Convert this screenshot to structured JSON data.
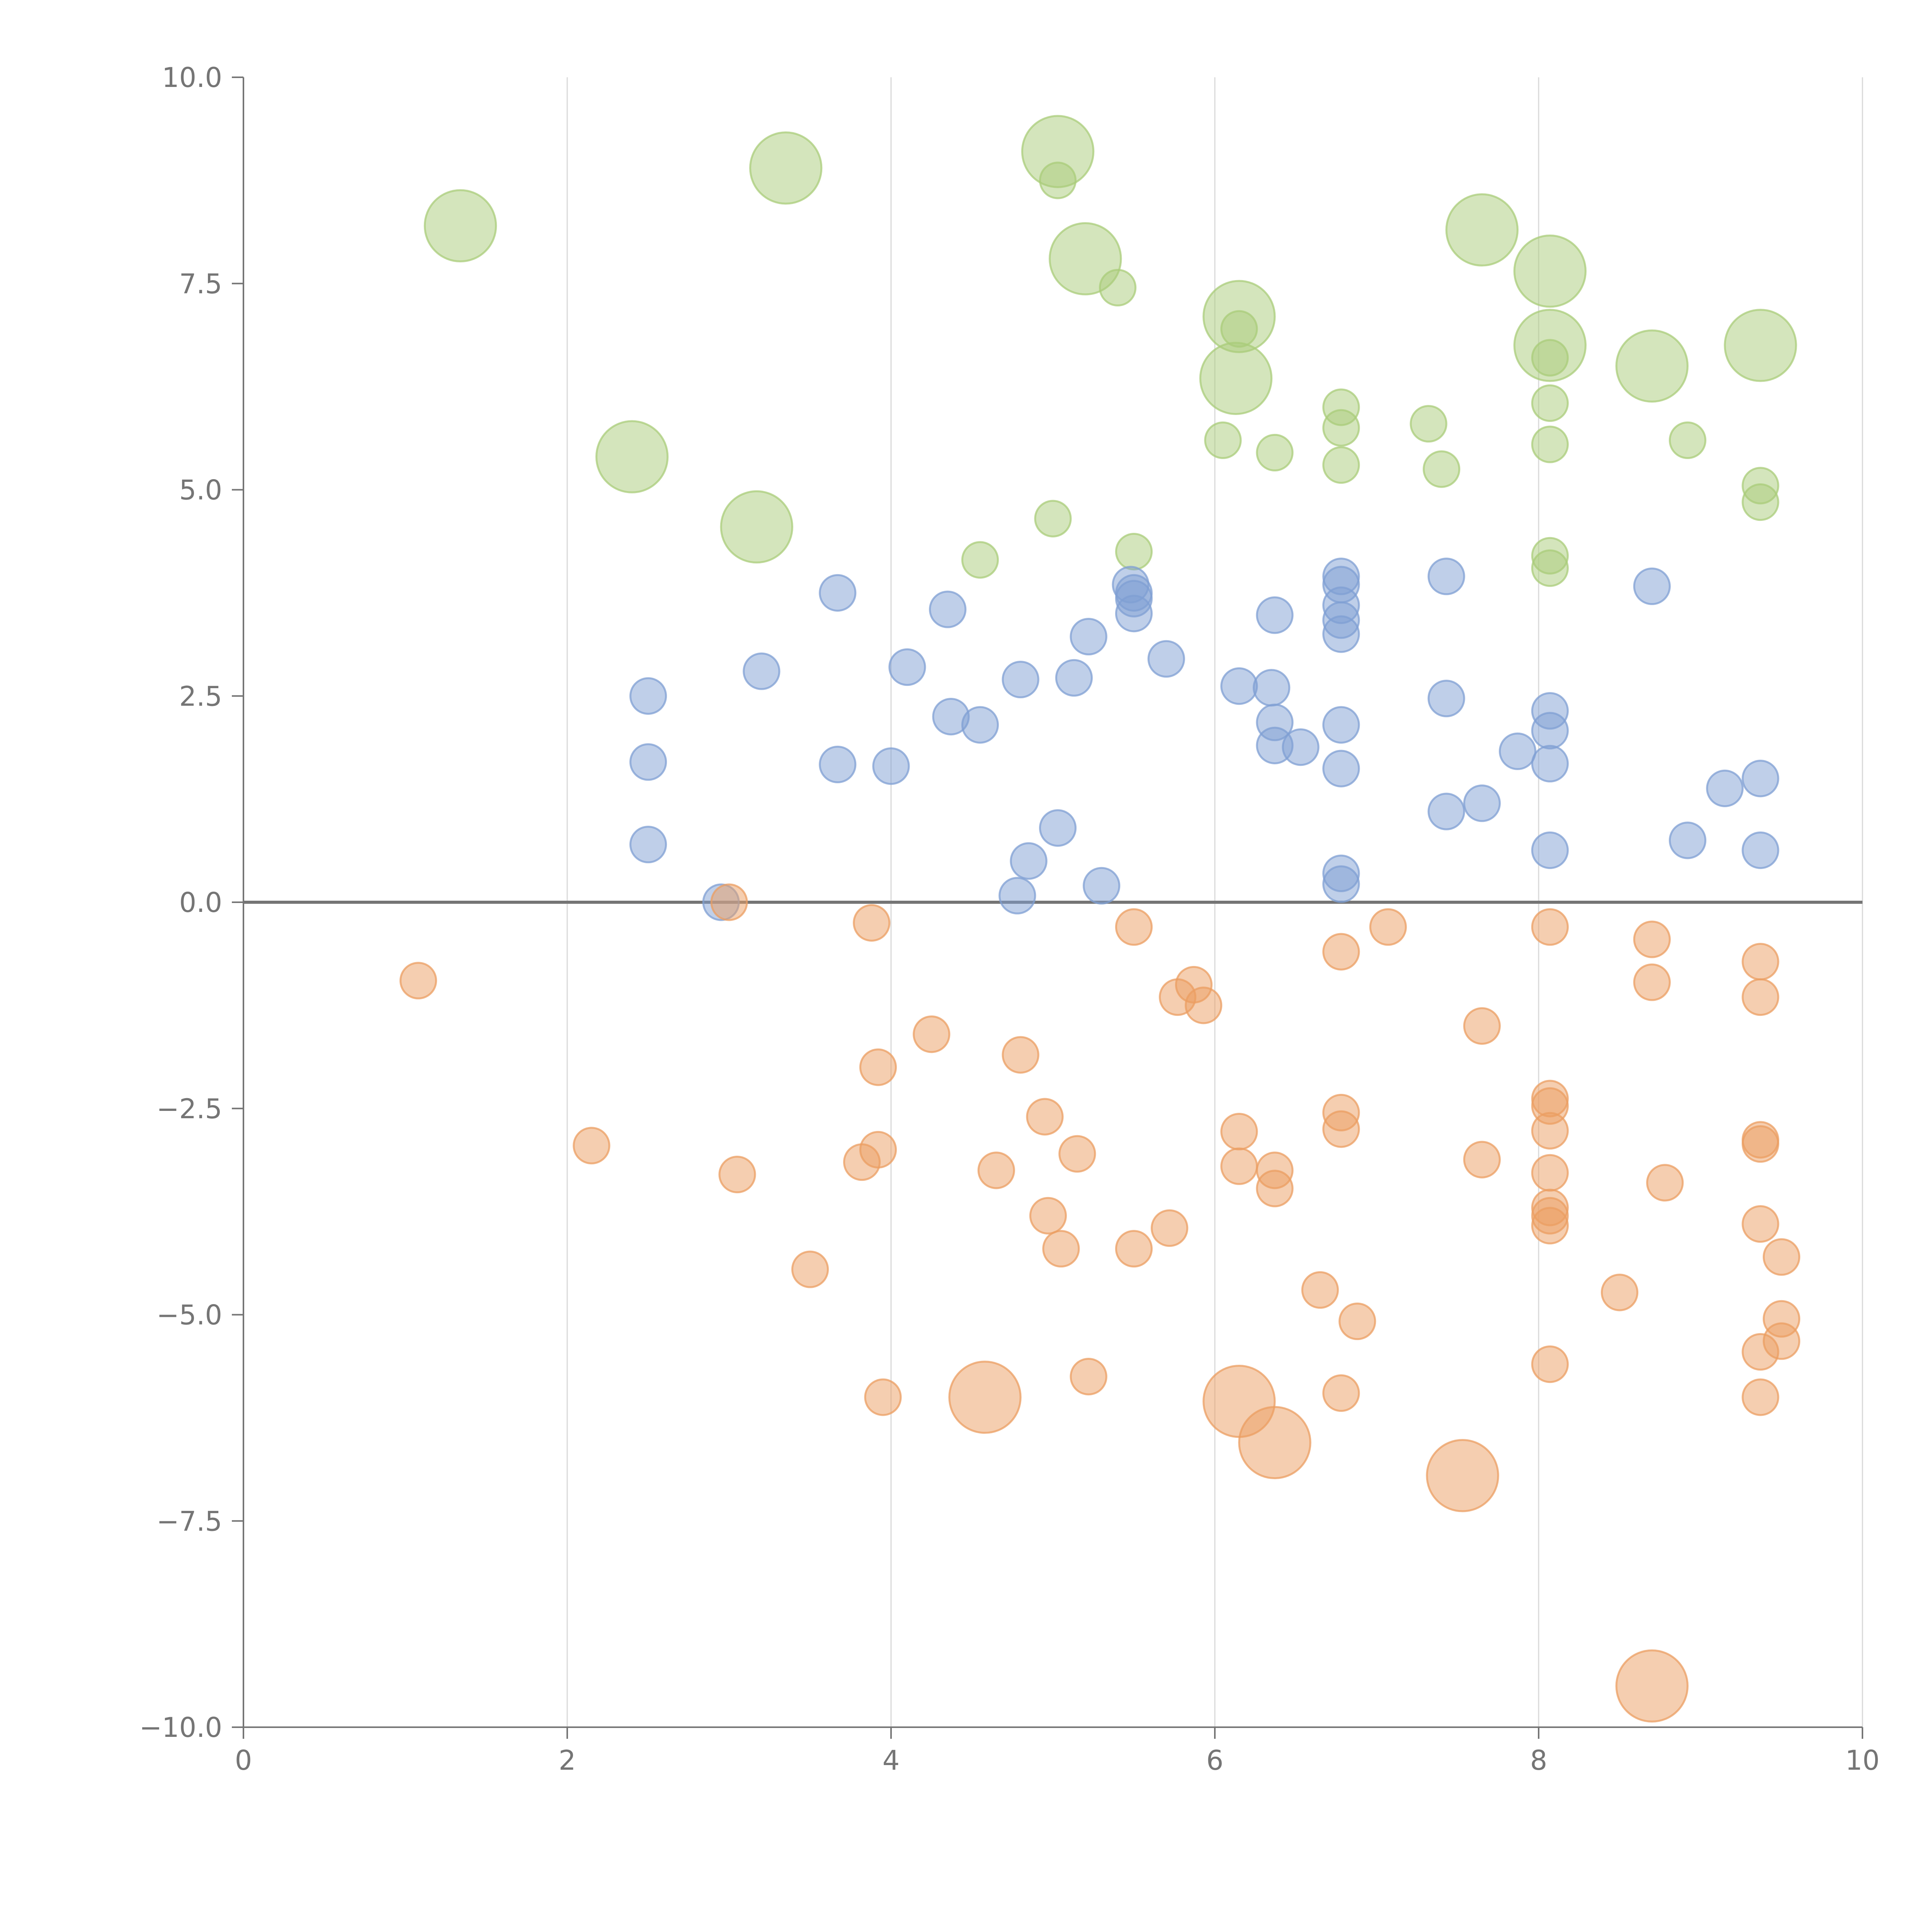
{
  "chart_data": {
    "type": "scatter",
    "title": "",
    "xlabel": "",
    "ylabel": "",
    "xlim": [
      0,
      10
    ],
    "ylim": [
      -10,
      10
    ],
    "x_ticks": [
      0,
      2,
      4,
      6,
      8,
      10
    ],
    "x_tick_labels": [
      "0",
      "2",
      "4",
      "6",
      "8",
      "10"
    ],
    "y_ticks": [
      -10,
      -7.5,
      -5,
      -2.5,
      0,
      2.5,
      5,
      7.5,
      10
    ],
    "y_tick_labels": [
      "−10.0",
      "−7.5",
      "−5.0",
      "−2.5",
      "0.0",
      "2.5",
      "5.0",
      "7.5",
      "10.0"
    ],
    "grid": {
      "x": true,
      "y": false
    },
    "zero_line": true,
    "legend": "none",
    "colors": {
      "green": "#a9cc7a",
      "blue": "#7f9fd3",
      "orange": "#eb9e61",
      "axis": "#757575",
      "grid": "#d9d9d9"
    },
    "series": [
      {
        "color": "#a9cc7a",
        "points": [
          {
            "x": 1.34,
            "y": 8.2,
            "r": 0.22
          },
          {
            "x": 3.35,
            "y": 8.9,
            "r": 0.22
          },
          {
            "x": 5.03,
            "y": 9.1,
            "r": 0.22
          },
          {
            "x": 5.03,
            "y": 8.75,
            "r": 0.11
          },
          {
            "x": 5.2,
            "y": 7.8,
            "r": 0.22
          },
          {
            "x": 5.4,
            "y": 7.45,
            "r": 0.11
          },
          {
            "x": 6.15,
            "y": 7.1,
            "r": 0.22
          },
          {
            "x": 6.15,
            "y": 6.95,
            "r": 0.11
          },
          {
            "x": 6.13,
            "y": 6.35,
            "r": 0.22
          },
          {
            "x": 7.65,
            "y": 8.15,
            "r": 0.22
          },
          {
            "x": 8.07,
            "y": 7.65,
            "r": 0.22
          },
          {
            "x": 8.07,
            "y": 6.75,
            "r": 0.22
          },
          {
            "x": 8.07,
            "y": 6.6,
            "r": 0.11
          },
          {
            "x": 8.07,
            "y": 6.05,
            "r": 0.11
          },
          {
            "x": 8.07,
            "y": 5.55,
            "r": 0.11
          },
          {
            "x": 8.7,
            "y": 6.5,
            "r": 0.22
          },
          {
            "x": 9.37,
            "y": 6.75,
            "r": 0.22
          },
          {
            "x": 8.92,
            "y": 5.6,
            "r": 0.11
          },
          {
            "x": 9.37,
            "y": 5.05,
            "r": 0.11
          },
          {
            "x": 9.37,
            "y": 4.85,
            "r": 0.11
          },
          {
            "x": 2.4,
            "y": 5.4,
            "r": 0.22
          },
          {
            "x": 3.17,
            "y": 4.55,
            "r": 0.22
          },
          {
            "x": 4.55,
            "y": 4.15,
            "r": 0.11
          },
          {
            "x": 5.0,
            "y": 4.65,
            "r": 0.11
          },
          {
            "x": 5.5,
            "y": 4.25,
            "r": 0.11
          },
          {
            "x": 6.05,
            "y": 5.6,
            "r": 0.11
          },
          {
            "x": 6.37,
            "y": 5.45,
            "r": 0.11
          },
          {
            "x": 6.78,
            "y": 6.0,
            "r": 0.11
          },
          {
            "x": 6.78,
            "y": 5.75,
            "r": 0.11
          },
          {
            "x": 6.78,
            "y": 5.3,
            "r": 0.11
          },
          {
            "x": 7.32,
            "y": 5.8,
            "r": 0.11
          },
          {
            "x": 7.4,
            "y": 5.25,
            "r": 0.11
          },
          {
            "x": 8.07,
            "y": 4.2,
            "r": 0.11
          },
          {
            "x": 8.07,
            "y": 4.05,
            "r": 0.11
          }
        ]
      },
      {
        "color": "#7f9fd3",
        "points": [
          {
            "x": 2.5,
            "y": 2.5,
            "r": 0.11
          },
          {
            "x": 2.5,
            "y": 1.7,
            "r": 0.11
          },
          {
            "x": 2.5,
            "y": 0.7,
            "r": 0.11
          },
          {
            "x": 2.95,
            "y": 0.0,
            "r": 0.11
          },
          {
            "x": 3.2,
            "y": 2.8,
            "r": 0.11
          },
          {
            "x": 3.67,
            "y": 3.75,
            "r": 0.11
          },
          {
            "x": 3.67,
            "y": 1.67,
            "r": 0.11
          },
          {
            "x": 4.0,
            "y": 1.65,
            "r": 0.11
          },
          {
            "x": 4.1,
            "y": 2.85,
            "r": 0.11
          },
          {
            "x": 4.35,
            "y": 3.55,
            "r": 0.11
          },
          {
            "x": 4.37,
            "y": 2.25,
            "r": 0.11
          },
          {
            "x": 4.55,
            "y": 2.15,
            "r": 0.11
          },
          {
            "x": 4.8,
            "y": 2.7,
            "r": 0.11
          },
          {
            "x": 4.85,
            "y": 0.5,
            "r": 0.11
          },
          {
            "x": 4.78,
            "y": 0.08,
            "r": 0.11
          },
          {
            "x": 5.03,
            "y": 0.9,
            "r": 0.11
          },
          {
            "x": 5.13,
            "y": 2.72,
            "r": 0.11
          },
          {
            "x": 5.22,
            "y": 3.22,
            "r": 0.11
          },
          {
            "x": 5.3,
            "y": 0.2,
            "r": 0.11
          },
          {
            "x": 5.48,
            "y": 3.85,
            "r": 0.11
          },
          {
            "x": 5.5,
            "y": 3.75,
            "r": 0.11
          },
          {
            "x": 5.5,
            "y": 3.68,
            "r": 0.11
          },
          {
            "x": 5.5,
            "y": 3.5,
            "r": 0.11
          },
          {
            "x": 5.7,
            "y": 2.95,
            "r": 0.11
          },
          {
            "x": 6.15,
            "y": 2.62,
            "r": 0.11
          },
          {
            "x": 6.35,
            "y": 2.6,
            "r": 0.11
          },
          {
            "x": 6.37,
            "y": 3.48,
            "r": 0.11
          },
          {
            "x": 6.37,
            "y": 2.18,
            "r": 0.11
          },
          {
            "x": 6.37,
            "y": 1.9,
            "r": 0.11
          },
          {
            "x": 6.53,
            "y": 1.88,
            "r": 0.11
          },
          {
            "x": 6.78,
            "y": 3.95,
            "r": 0.11
          },
          {
            "x": 6.78,
            "y": 3.85,
            "r": 0.11
          },
          {
            "x": 6.78,
            "y": 3.6,
            "r": 0.11
          },
          {
            "x": 6.78,
            "y": 3.42,
            "r": 0.11
          },
          {
            "x": 6.78,
            "y": 3.25,
            "r": 0.11
          },
          {
            "x": 6.78,
            "y": 2.15,
            "r": 0.11
          },
          {
            "x": 6.78,
            "y": 1.62,
            "r": 0.11
          },
          {
            "x": 6.78,
            "y": 0.35,
            "r": 0.11
          },
          {
            "x": 6.78,
            "y": 0.22,
            "r": 0.11
          },
          {
            "x": 7.43,
            "y": 3.95,
            "r": 0.11
          },
          {
            "x": 7.43,
            "y": 2.47,
            "r": 0.11
          },
          {
            "x": 7.43,
            "y": 1.1,
            "r": 0.11
          },
          {
            "x": 7.65,
            "y": 1.2,
            "r": 0.11
          },
          {
            "x": 7.87,
            "y": 1.83,
            "r": 0.11
          },
          {
            "x": 8.07,
            "y": 2.32,
            "r": 0.11
          },
          {
            "x": 8.07,
            "y": 2.08,
            "r": 0.11
          },
          {
            "x": 8.07,
            "y": 1.68,
            "r": 0.11
          },
          {
            "x": 8.07,
            "y": 0.63,
            "r": 0.11
          },
          {
            "x": 8.7,
            "y": 3.83,
            "r": 0.11
          },
          {
            "x": 8.92,
            "y": 0.75,
            "r": 0.11
          },
          {
            "x": 9.15,
            "y": 1.38,
            "r": 0.11
          },
          {
            "x": 9.37,
            "y": 1.5,
            "r": 0.11
          },
          {
            "x": 9.37,
            "y": 0.63,
            "r": 0.11
          }
        ]
      },
      {
        "color": "#eb9e61",
        "points": [
          {
            "x": 1.08,
            "y": -0.95,
            "r": 0.11
          },
          {
            "x": 2.15,
            "y": -2.95,
            "r": 0.11
          },
          {
            "x": 3.0,
            "y": 0.0,
            "r": 0.11
          },
          {
            "x": 3.05,
            "y": -3.3,
            "r": 0.11
          },
          {
            "x": 3.5,
            "y": -4.45,
            "r": 0.11
          },
          {
            "x": 3.82,
            "y": -3.15,
            "r": 0.11
          },
          {
            "x": 3.88,
            "y": -0.25,
            "r": 0.11
          },
          {
            "x": 3.92,
            "y": -2.0,
            "r": 0.11
          },
          {
            "x": 3.92,
            "y": -3.0,
            "r": 0.11
          },
          {
            "x": 3.95,
            "y": -6.0,
            "r": 0.11
          },
          {
            "x": 4.25,
            "y": -1.6,
            "r": 0.11
          },
          {
            "x": 4.58,
            "y": -6.0,
            "r": 0.22
          },
          {
            "x": 4.65,
            "y": -3.25,
            "r": 0.11
          },
          {
            "x": 4.8,
            "y": -1.85,
            "r": 0.11
          },
          {
            "x": 4.95,
            "y": -2.6,
            "r": 0.11
          },
          {
            "x": 4.97,
            "y": -3.8,
            "r": 0.11
          },
          {
            "x": 5.05,
            "y": -4.2,
            "r": 0.11
          },
          {
            "x": 5.15,
            "y": -3.05,
            "r": 0.11
          },
          {
            "x": 5.22,
            "y": -5.75,
            "r": 0.11
          },
          {
            "x": 5.5,
            "y": -0.3,
            "r": 0.11
          },
          {
            "x": 5.5,
            "y": -4.2,
            "r": 0.11
          },
          {
            "x": 5.72,
            "y": -3.95,
            "r": 0.11
          },
          {
            "x": 5.77,
            "y": -1.15,
            "r": 0.11
          },
          {
            "x": 5.87,
            "y": -1.0,
            "r": 0.11
          },
          {
            "x": 5.93,
            "y": -1.25,
            "r": 0.11
          },
          {
            "x": 6.15,
            "y": -2.78,
            "r": 0.11
          },
          {
            "x": 6.15,
            "y": -3.2,
            "r": 0.11
          },
          {
            "x": 6.15,
            "y": -6.05,
            "r": 0.22
          },
          {
            "x": 6.37,
            "y": -3.25,
            "r": 0.11
          },
          {
            "x": 6.37,
            "y": -3.47,
            "r": 0.11
          },
          {
            "x": 6.37,
            "y": -6.55,
            "r": 0.22
          },
          {
            "x": 6.65,
            "y": -4.7,
            "r": 0.11
          },
          {
            "x": 6.78,
            "y": -0.6,
            "r": 0.11
          },
          {
            "x": 6.78,
            "y": -2.55,
            "r": 0.11
          },
          {
            "x": 6.78,
            "y": -2.75,
            "r": 0.11
          },
          {
            "x": 6.78,
            "y": -5.95,
            "r": 0.11
          },
          {
            "x": 6.88,
            "y": -5.08,
            "r": 0.11
          },
          {
            "x": 7.07,
            "y": -0.3,
            "r": 0.11
          },
          {
            "x": 7.53,
            "y": -6.95,
            "r": 0.22
          },
          {
            "x": 7.65,
            "y": -1.5,
            "r": 0.11
          },
          {
            "x": 7.65,
            "y": -3.12,
            "r": 0.11
          },
          {
            "x": 8.07,
            "y": -0.3,
            "r": 0.11
          },
          {
            "x": 8.07,
            "y": -2.38,
            "r": 0.11
          },
          {
            "x": 8.07,
            "y": -2.47,
            "r": 0.11
          },
          {
            "x": 8.07,
            "y": -2.77,
            "r": 0.11
          },
          {
            "x": 8.07,
            "y": -3.28,
            "r": 0.11
          },
          {
            "x": 8.07,
            "y": -3.7,
            "r": 0.11
          },
          {
            "x": 8.07,
            "y": -3.8,
            "r": 0.11
          },
          {
            "x": 8.07,
            "y": -3.92,
            "r": 0.11
          },
          {
            "x": 8.07,
            "y": -5.6,
            "r": 0.11
          },
          {
            "x": 8.5,
            "y": -4.73,
            "r": 0.11
          },
          {
            "x": 8.7,
            "y": -0.45,
            "r": 0.11
          },
          {
            "x": 8.7,
            "y": -0.97,
            "r": 0.11
          },
          {
            "x": 8.78,
            "y": -3.4,
            "r": 0.11
          },
          {
            "x": 8.7,
            "y": -9.5,
            "r": 0.22
          },
          {
            "x": 9.37,
            "y": -0.72,
            "r": 0.11
          },
          {
            "x": 9.37,
            "y": -1.15,
            "r": 0.11
          },
          {
            "x": 9.37,
            "y": -2.88,
            "r": 0.11
          },
          {
            "x": 9.37,
            "y": -2.93,
            "r": 0.11
          },
          {
            "x": 9.37,
            "y": -3.9,
            "r": 0.11
          },
          {
            "x": 9.37,
            "y": -5.45,
            "r": 0.11
          },
          {
            "x": 9.37,
            "y": -6.0,
            "r": 0.11
          },
          {
            "x": 9.5,
            "y": -4.3,
            "r": 0.11
          },
          {
            "x": 9.5,
            "y": -5.05,
            "r": 0.11
          },
          {
            "x": 9.5,
            "y": -5.32,
            "r": 0.11
          }
        ]
      }
    ]
  }
}
